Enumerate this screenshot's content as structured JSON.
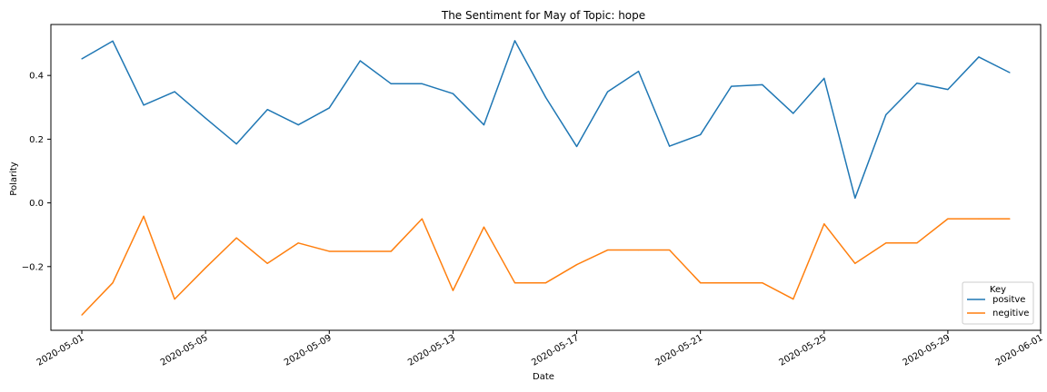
{
  "chart_data": {
    "type": "line",
    "title": "The Sentiment for May of Topic: hope",
    "xlabel": "Date",
    "ylabel": "Polarity",
    "x": [
      "2020-05-01",
      "2020-05-02",
      "2020-05-03",
      "2020-05-04",
      "2020-05-05",
      "2020-05-06",
      "2020-05-07",
      "2020-05-08",
      "2020-05-09",
      "2020-05-10",
      "2020-05-11",
      "2020-05-12",
      "2020-05-13",
      "2020-05-14",
      "2020-05-15",
      "2020-05-16",
      "2020-05-17",
      "2020-05-18",
      "2020-05-19",
      "2020-05-20",
      "2020-05-21",
      "2020-05-22",
      "2020-05-23",
      "2020-05-24",
      "2020-05-25",
      "2020-05-26",
      "2020-05-27",
      "2020-05-28",
      "2020-05-29",
      "2020-05-30",
      "2020-05-31"
    ],
    "xlim": [
      "2020-04-30",
      "2020-06-01"
    ],
    "ylim": [
      -0.4,
      0.56
    ],
    "x_ticks": [
      "2020-05-01",
      "2020-05-05",
      "2020-05-09",
      "2020-05-13",
      "2020-05-17",
      "2020-05-21",
      "2020-05-25",
      "2020-05-29",
      "2020-06-01"
    ],
    "y_ticks": [
      0.4,
      0.2,
      0.0,
      -0.2
    ],
    "y_tick_labels": [
      "0.4",
      "0.2",
      "0.0",
      "−0.2"
    ],
    "grid": false,
    "legend": {
      "title": "Key",
      "placement": "lower-right"
    },
    "series": [
      {
        "name": "positve",
        "color": "#1f77b4",
        "values": [
          0.452,
          0.508,
          0.307,
          0.349,
          0.266,
          0.185,
          0.293,
          0.245,
          0.298,
          0.446,
          0.374,
          0.374,
          0.343,
          0.245,
          0.509,
          0.331,
          0.177,
          0.349,
          0.413,
          0.178,
          0.214,
          0.366,
          0.371,
          0.281,
          0.391,
          0.015,
          0.277,
          0.376,
          0.356,
          0.458,
          0.409
        ]
      },
      {
        "name": "negitive",
        "color": "#ff7f0e",
        "values": [
          -0.352,
          -0.251,
          -0.042,
          -0.302,
          -0.204,
          -0.11,
          -0.19,
          -0.126,
          -0.152,
          -0.152,
          -0.152,
          -0.05,
          -0.275,
          -0.076,
          -0.251,
          -0.251,
          -0.194,
          -0.148,
          -0.148,
          -0.148,
          -0.251,
          -0.251,
          -0.251,
          -0.302,
          -0.066,
          -0.19,
          -0.126,
          -0.126,
          -0.05,
          -0.05,
          -0.05
        ]
      }
    ]
  }
}
